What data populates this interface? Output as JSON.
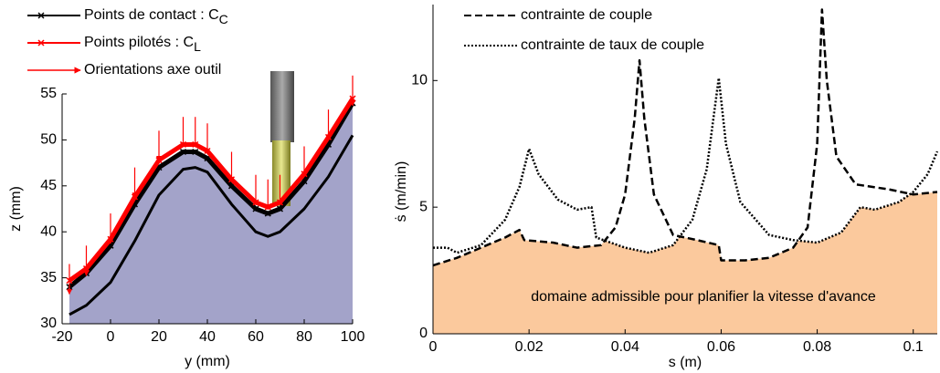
{
  "chart_data": [
    {
      "type": "line",
      "x_label": "y (mm)",
      "y_label": "z (mm)",
      "xlim": [
        -20,
        100
      ],
      "ylim": [
        30,
        55
      ],
      "xticks": [
        -20,
        0,
        20,
        40,
        60,
        80,
        100
      ],
      "yticks": [
        30,
        35,
        40,
        45,
        50,
        55
      ],
      "x": [
        -17,
        -10,
        0,
        10,
        20,
        30,
        35,
        40,
        50,
        60,
        65,
        70,
        80,
        90,
        100
      ],
      "series": [
        {
          "values": [
            31,
            32,
            34.5,
            39,
            44,
            46.8,
            47,
            46.5,
            43,
            40,
            39.5,
            40,
            42.5,
            46,
            50.5
          ],
          "color": "#000000",
          "line_style": "solid"
        },
        {
          "name": "Points de contact : C",
          "subscript": "C",
          "color": "#000000",
          "marker": "x",
          "line_style": "solid",
          "fill_color": "#a3a3c9",
          "values": [
            34,
            35.5,
            38.5,
            43,
            47,
            48.7,
            48.7,
            48,
            45,
            42.5,
            42,
            42.5,
            45.5,
            49.5,
            54
          ]
        },
        {
          "name": "Points pilotés : C",
          "subscript": "L",
          "color": "#ff0000",
          "marker": "x",
          "line_style": "solid",
          "values": [
            34.7,
            36,
            39.2,
            43.8,
            47.8,
            49.5,
            49.5,
            48.8,
            45.7,
            43.2,
            42.7,
            43.2,
            46.3,
            50.3,
            54.5
          ]
        },
        {
          "name": "Orientations axe outil",
          "color": "#ff0000",
          "arrows": true,
          "values": [
            36.5,
            38.5,
            42,
            47,
            51,
            52.5,
            52.5,
            51.8,
            48.7,
            46.2,
            45.7,
            46.2,
            49.3,
            53.3,
            57
          ]
        }
      ]
    },
    {
      "type": "line",
      "x_label": "s (m)",
      "y_label": "ṡ  (m/min)",
      "xlim": [
        0,
        0.105
      ],
      "ylim": [
        0,
        13
      ],
      "xticks": [
        0,
        0.02,
        0.04,
        0.06,
        0.08,
        0.1
      ],
      "yticks": [
        0,
        5,
        10
      ],
      "min_fill_color": "#fbc99d",
      "annotation": "domaine admissible pour planifier la vitesse d'avance",
      "series": [
        {
          "name": "contrainte de couple",
          "color": "#000000",
          "line_style": "dashed",
          "x": [
            0,
            0.005,
            0.01,
            0.015,
            0.018,
            0.019,
            0.025,
            0.03,
            0.035,
            0.038,
            0.04,
            0.042,
            0.043,
            0.044,
            0.046,
            0.05,
            0.055,
            0.0595,
            0.06,
            0.065,
            0.07,
            0.075,
            0.078,
            0.08,
            0.081,
            0.082,
            0.084,
            0.088,
            0.095,
            0.1,
            0.105
          ],
          "values": [
            2.7,
            3.0,
            3.4,
            3.8,
            4.1,
            3.7,
            3.6,
            3.4,
            3.5,
            4.2,
            5.5,
            8.5,
            10.8,
            8.5,
            5.5,
            3.9,
            3.7,
            3.5,
            2.9,
            2.9,
            3.0,
            3.4,
            4.2,
            7.5,
            12.8,
            10,
            7,
            5.9,
            5.7,
            5.5,
            5.6
          ]
        },
        {
          "name": "contrainte de taux de couple",
          "color": "#000000",
          "line_style": "dotted",
          "x": [
            0,
            0.003,
            0.005,
            0.01,
            0.015,
            0.018,
            0.02,
            0.022,
            0.026,
            0.03,
            0.033,
            0.034,
            0.04,
            0.045,
            0.05,
            0.054,
            0.057,
            0.0595,
            0.061,
            0.064,
            0.07,
            0.075,
            0.08,
            0.085,
            0.089,
            0.092,
            0.097,
            0.1,
            0.103,
            0.105
          ],
          "values": [
            3.4,
            3.4,
            3.2,
            3.5,
            4.5,
            5.8,
            7.3,
            6.3,
            5.3,
            4.9,
            5.0,
            3.8,
            3.4,
            3.2,
            3.5,
            4.5,
            6.5,
            10.1,
            7.5,
            5.2,
            3.9,
            3.7,
            3.6,
            4.0,
            5.0,
            4.9,
            5.2,
            5.6,
            6.3,
            7.2
          ]
        }
      ]
    }
  ]
}
